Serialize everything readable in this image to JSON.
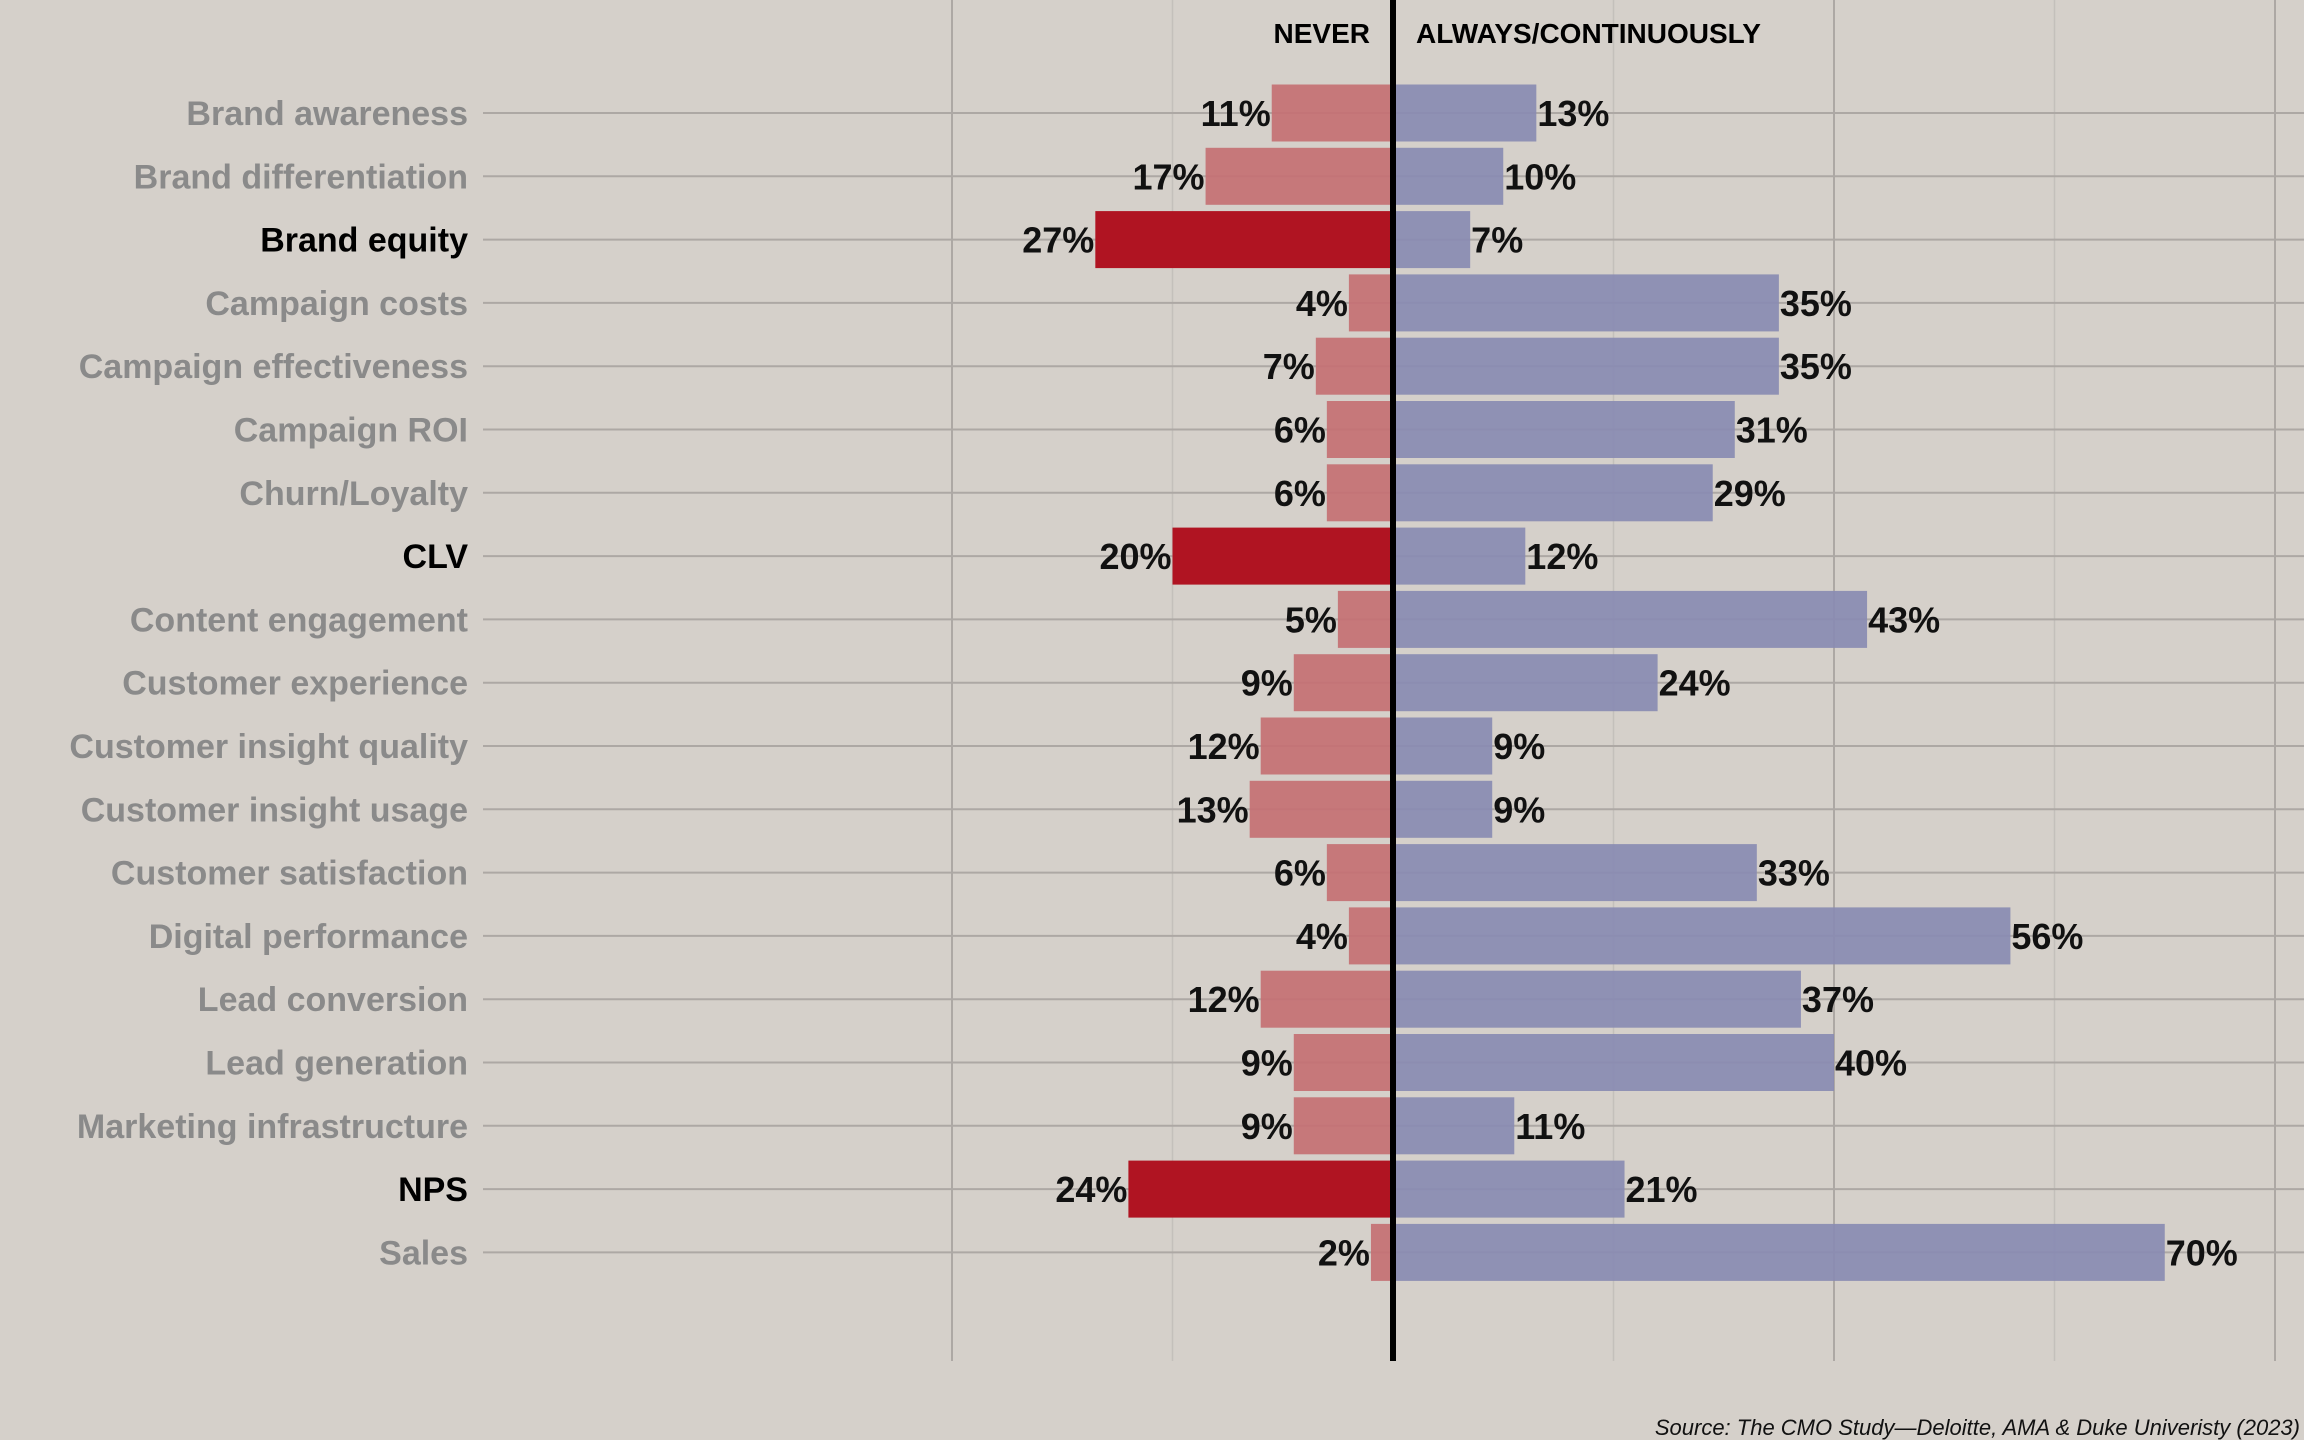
{
  "chart_data": {
    "type": "bar",
    "orientation": "horizontal-diverging",
    "title": "",
    "xlabel": "",
    "ylabel": "",
    "xlim": [
      -40,
      80
    ],
    "grid": true,
    "headers": {
      "left": "NEVER",
      "right": "ALWAYS/CONTINUOUSLY"
    },
    "categories": [
      "Brand awareness",
      "Brand differentiation",
      "Brand equity",
      "Campaign costs",
      "Campaign effectiveness",
      "Campaign ROI",
      "Churn/Loyalty",
      "CLV",
      "Content engagement",
      "Customer experience",
      "Customer insight quality",
      "Customer insight usage",
      "Customer satisfaction",
      "Digital performance",
      "Lead conversion",
      "Lead generation",
      "Marketing infrastructure",
      "NPS",
      "Sales"
    ],
    "highlighted": [
      "Brand equity",
      "CLV",
      "NPS"
    ],
    "series": [
      {
        "name": "NEVER",
        "side": "left",
        "values": [
          11,
          17,
          27,
          4,
          7,
          6,
          6,
          20,
          5,
          9,
          12,
          13,
          6,
          4,
          12,
          9,
          9,
          24,
          2
        ],
        "labels": [
          "11%",
          "17%",
          "27%",
          "4%",
          "7%",
          "6%",
          "6%",
          "20%",
          "5%",
          "9%",
          "12%",
          "13%",
          "6%",
          "4%",
          "12%",
          "9%",
          "9%",
          "24%",
          "2%"
        ]
      },
      {
        "name": "ALWAYS/CONTINUOUSLY",
        "side": "right",
        "values": [
          13,
          10,
          7,
          35,
          35,
          31,
          29,
          12,
          43,
          24,
          9,
          9,
          33,
          56,
          37,
          40,
          11,
          21,
          70
        ],
        "labels": [
          "13%",
          "10%",
          "7%",
          "35%",
          "35%",
          "31%",
          "29%",
          "12%",
          "43%",
          "24%",
          "9%",
          "9%",
          "33%",
          "56%",
          "37%",
          "40%",
          "11%",
          "21%",
          "70%"
        ]
      }
    ],
    "colors": {
      "background": "#D5D0CA",
      "never": "#C47073",
      "never_highlight": "#B01422",
      "always": "#898BB2",
      "label": "#8A8A8A",
      "label_highlight": "#000000",
      "axis": "#000000",
      "grid_major": "#ADA8A4",
      "grid_minor": "#C4C0BB"
    },
    "source": "Source: The CMO Study—Deloitte, AMA & Duke Univeristy (2023)"
  }
}
